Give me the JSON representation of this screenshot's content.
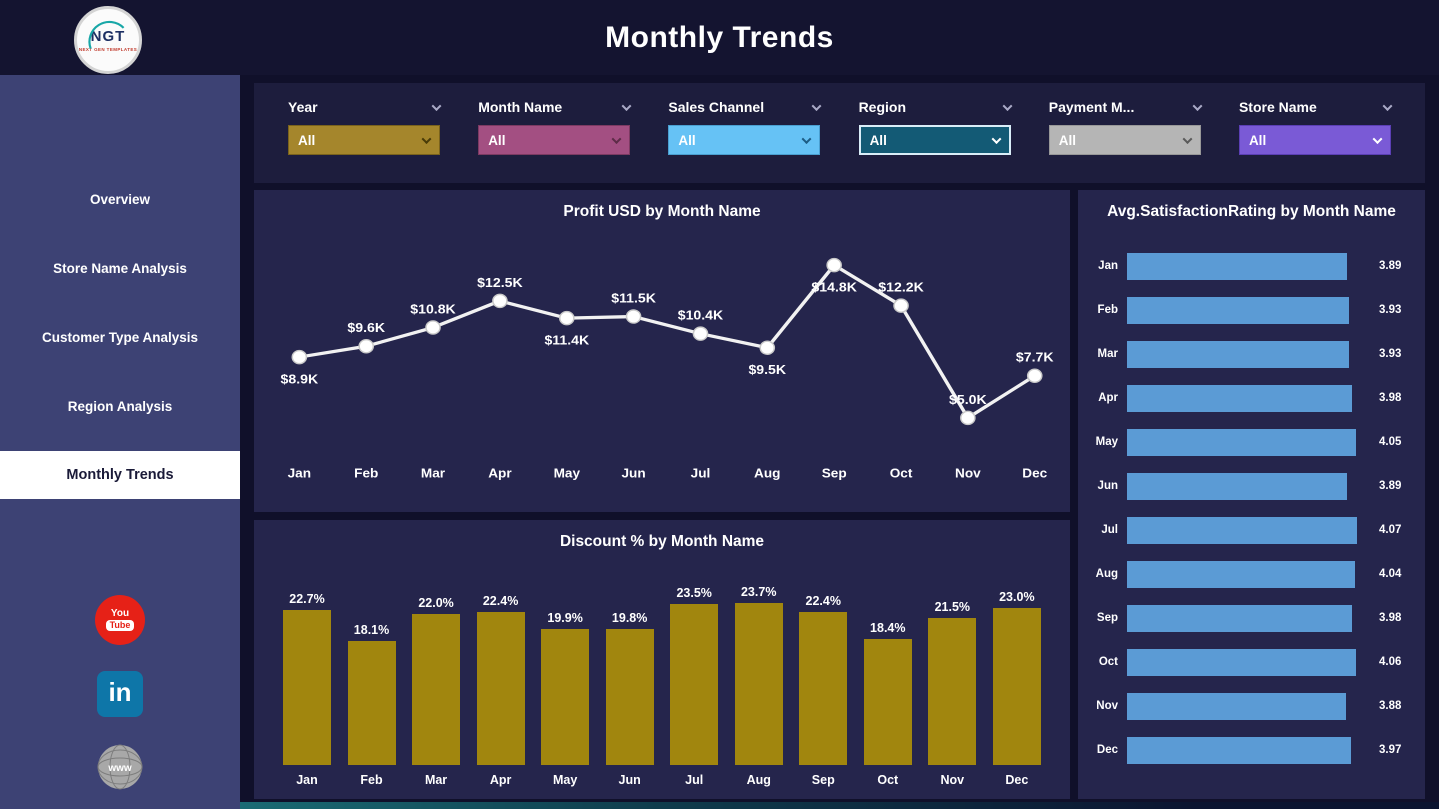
{
  "header": {
    "title": "Monthly Trends",
    "logo": {
      "text": "NGT",
      "subtext": "NEXT GEN TEMPLATES"
    }
  },
  "sidebar": {
    "items": [
      {
        "label": "Overview",
        "active": false
      },
      {
        "label": "Store Name Analysis",
        "active": false
      },
      {
        "label": "Customer Type Analysis",
        "active": false
      },
      {
        "label": "Region Analysis",
        "active": false
      },
      {
        "label": "Monthly Trends",
        "active": true
      }
    ],
    "social": [
      {
        "name": "youtube",
        "you": "You",
        "tube": "Tube"
      },
      {
        "name": "linkedin",
        "text": "in"
      },
      {
        "name": "website",
        "text": "www"
      }
    ]
  },
  "filters": [
    {
      "label": "Year",
      "value": "All",
      "color": "#a5862c",
      "border": "#7a621c",
      "chevron": "#4a3c08",
      "text_color": "#ffffff",
      "selected": false
    },
    {
      "label": "Month Name",
      "value": "All",
      "color": "#a34f82",
      "border": "#7c3a62",
      "chevron": "#5e2c48",
      "text_color": "#ffffff",
      "selected": false
    },
    {
      "label": "Sales Channel",
      "value": "All",
      "color": "#66c2f5",
      "border": "#4a9fd0",
      "chevron": "#1d5d85",
      "text_color": "#ffffff",
      "selected": false
    },
    {
      "label": "Region",
      "value": "All",
      "color": "#135a75",
      "border": "#d9edf8",
      "chevron": "#ffffff",
      "text_color": "#ffffff",
      "selected": true
    },
    {
      "label": "Payment M...",
      "value": "All",
      "color": "#b5b5b5",
      "border": "#989898",
      "chevron": "#5a5a5a",
      "text_color": "#ffffff",
      "selected": false
    },
    {
      "label": "Store Name",
      "value": "All",
      "color": "#7a5ad6",
      "border": "#5b3fb5",
      "chevron": "#ffffff",
      "text_color": "#ffffff",
      "selected": false
    }
  ],
  "chart_data": [
    {
      "type": "line",
      "title": "Profit USD by Month Name",
      "categories": [
        "Jan",
        "Feb",
        "Mar",
        "Apr",
        "May",
        "Jun",
        "Jul",
        "Aug",
        "Sep",
        "Oct",
        "Nov",
        "Dec"
      ],
      "values": [
        8.9,
        9.6,
        10.8,
        12.5,
        11.4,
        11.5,
        10.4,
        9.5,
        14.8,
        12.2,
        5.0,
        7.7
      ],
      "labels": [
        "$8.9K",
        "$9.6K",
        "$10.8K",
        "$12.5K",
        "$11.4K",
        "$11.5K",
        "$10.4K",
        "$9.5K",
        "$14.8K",
        "$12.2K",
        "$5.0K",
        "$7.7K"
      ],
      "label_positions": [
        "below",
        "above",
        "above",
        "above",
        "below",
        "above",
        "above",
        "below",
        "below",
        "above",
        "above",
        "above"
      ],
      "xlabel": "Month Name",
      "ylabel": "Profit USD",
      "ylim": [
        4,
        16
      ],
      "grid": false,
      "line_color": "#f2f2f2",
      "marker_color": "#ffffff"
    },
    {
      "type": "bar",
      "title": "Discount % by Month Name",
      "categories": [
        "Jan",
        "Feb",
        "Mar",
        "Apr",
        "May",
        "Jun",
        "Jul",
        "Aug",
        "Sep",
        "Oct",
        "Nov",
        "Dec"
      ],
      "values": [
        22.7,
        18.1,
        22.0,
        22.4,
        19.9,
        19.8,
        23.5,
        23.7,
        22.4,
        18.4,
        21.5,
        23.0
      ],
      "labels": [
        "22.7%",
        "18.1%",
        "22.0%",
        "22.4%",
        "19.9%",
        "19.8%",
        "23.5%",
        "23.7%",
        "22.4%",
        "18.4%",
        "21.5%",
        "23.0%"
      ],
      "xlabel": "Month Name",
      "ylabel": "Discount %",
      "ylim": [
        0,
        26
      ],
      "grid": false,
      "bar_color": "#a1860e"
    },
    {
      "type": "hbar",
      "title": "Avg.SatisfactionRating by Month Name",
      "categories": [
        "Jan",
        "Feb",
        "Mar",
        "Apr",
        "May",
        "Jun",
        "Jul",
        "Aug",
        "Sep",
        "Oct",
        "Nov",
        "Dec"
      ],
      "values": [
        3.89,
        3.93,
        3.93,
        3.98,
        4.05,
        3.89,
        4.07,
        4.04,
        3.98,
        4.06,
        3.88,
        3.97
      ],
      "labels": [
        "3.89",
        "3.93",
        "3.93",
        "3.98",
        "4.05",
        "3.89",
        "4.07",
        "4.04",
        "3.98",
        "4.06",
        "3.88",
        "3.97"
      ],
      "xlabel": "Avg.SatisfactionRating",
      "ylabel": "Month Name",
      "xlim": [
        0,
        4.3
      ],
      "grid": false,
      "bar_color": "#5b9bd5"
    }
  ]
}
